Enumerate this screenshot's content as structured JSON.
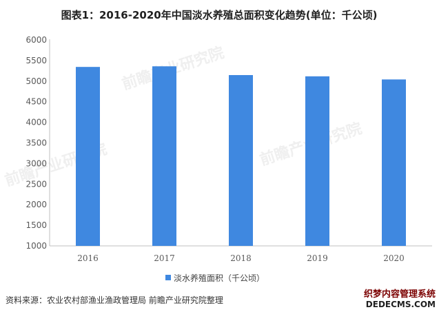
{
  "colors": {
    "bar": "#3f88e0",
    "axis": "#bfbfbf",
    "text": "#595959"
  },
  "chart_data": {
    "type": "bar",
    "title": "图表1：2016-2020年中国淡水养殖总面积变化趋势(单位：千公顷)",
    "categories": [
      "2016",
      "2017",
      "2018",
      "2019",
      "2020"
    ],
    "series": [
      {
        "name": "淡水养殖面积（千公顷）",
        "values": [
          5345,
          5360,
          5147,
          5117,
          5041
        ]
      }
    ],
    "yticks": [
      "1000",
      "1500",
      "2000",
      "2500",
      "3000",
      "3500",
      "4000",
      "4500",
      "5000",
      "5500",
      "6000"
    ],
    "ylim": [
      1000,
      6000
    ],
    "grid": false,
    "legend": "bottom"
  },
  "source": "资料来源：农业农村部渔业渔政管理局 前瞻产业研究院整理",
  "watermarks": [
    "前瞻产业研究院",
    "前瞻产业研究院",
    "前瞻产业研究院"
  ],
  "site_watermark": {
    "line1": "织梦内容管理系统",
    "line2": "DEDECMS.COM"
  }
}
